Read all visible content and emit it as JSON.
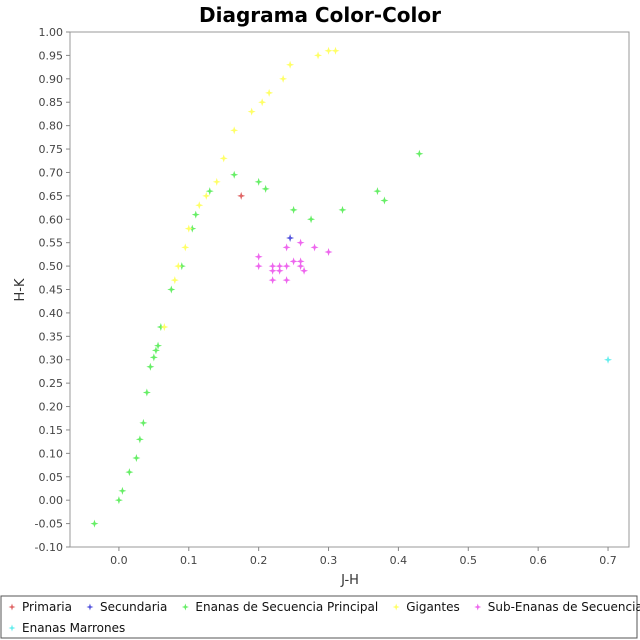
{
  "chart_data": {
    "type": "scatter",
    "title": "Diagrama Color-Color",
    "xlabel": "J-H",
    "ylabel": "H-K",
    "xlim": [
      -0.07,
      0.73
    ],
    "ylim": [
      -0.1,
      1.0
    ],
    "xticks": [
      0.0,
      0.1,
      0.2,
      0.3,
      0.4,
      0.5,
      0.6,
      0.7
    ],
    "xtick_labels": [
      "0.0",
      "0.1",
      "0.2",
      "0.3",
      "0.4",
      "0.5",
      "0.6",
      "0.7"
    ],
    "yticks": [
      -0.1,
      -0.05,
      0.0,
      0.05,
      0.1,
      0.15,
      0.2,
      0.25,
      0.3,
      0.35,
      0.4,
      0.45,
      0.5,
      0.55,
      0.6,
      0.65,
      0.7,
      0.75,
      0.8,
      0.85,
      0.9,
      0.95,
      1.0
    ],
    "ytick_labels": [
      "-0.10",
      "-0.05",
      "0.00",
      "0.05",
      "0.10",
      "0.15",
      "0.20",
      "0.25",
      "0.30",
      "0.35",
      "0.40",
      "0.45",
      "0.50",
      "0.55",
      "0.60",
      "0.65",
      "0.70",
      "0.75",
      "0.80",
      "0.85",
      "0.90",
      "0.95",
      "1.00"
    ],
    "grid": false,
    "legend_position": "bottom",
    "series": [
      {
        "name": "Primaria",
        "color": "#e06666",
        "points": [
          [
            0.175,
            0.65
          ]
        ]
      },
      {
        "name": "Secundaria",
        "color": "#5555dd",
        "points": [
          [
            0.245,
            0.56
          ]
        ]
      },
      {
        "name": "Enanas de Secuencia Principal",
        "color": "#66ee66",
        "points": [
          [
            -0.035,
            -0.05
          ],
          [
            0.0,
            0.0
          ],
          [
            0.005,
            0.02
          ],
          [
            0.015,
            0.06
          ],
          [
            0.025,
            0.09
          ],
          [
            0.03,
            0.13
          ],
          [
            0.035,
            0.165
          ],
          [
            0.04,
            0.23
          ],
          [
            0.045,
            0.285
          ],
          [
            0.05,
            0.305
          ],
          [
            0.053,
            0.32
          ],
          [
            0.056,
            0.33
          ],
          [
            0.06,
            0.37
          ],
          [
            0.075,
            0.45
          ],
          [
            0.09,
            0.5
          ],
          [
            0.105,
            0.58
          ],
          [
            0.11,
            0.61
          ],
          [
            0.13,
            0.66
          ],
          [
            0.165,
            0.695
          ],
          [
            0.2,
            0.68
          ],
          [
            0.21,
            0.665
          ],
          [
            0.25,
            0.62
          ],
          [
            0.275,
            0.6
          ],
          [
            0.32,
            0.62
          ],
          [
            0.37,
            0.66
          ],
          [
            0.38,
            0.64
          ],
          [
            0.43,
            0.74
          ]
        ]
      },
      {
        "name": "Gigantes",
        "color": "#ffff66",
        "points": [
          [
            0.065,
            0.37
          ],
          [
            0.08,
            0.47
          ],
          [
            0.085,
            0.5
          ],
          [
            0.095,
            0.54
          ],
          [
            0.1,
            0.58
          ],
          [
            0.115,
            0.63
          ],
          [
            0.125,
            0.65
          ],
          [
            0.14,
            0.68
          ],
          [
            0.15,
            0.73
          ],
          [
            0.165,
            0.79
          ],
          [
            0.19,
            0.83
          ],
          [
            0.205,
            0.85
          ],
          [
            0.215,
            0.87
          ],
          [
            0.235,
            0.9
          ],
          [
            0.245,
            0.93
          ],
          [
            0.285,
            0.95
          ],
          [
            0.3,
            0.96
          ],
          [
            0.31,
            0.96
          ]
        ]
      },
      {
        "name": "Sub-Enanas de Secuencia Principal",
        "color": "#ee66ee",
        "points": [
          [
            0.2,
            0.52
          ],
          [
            0.2,
            0.5
          ],
          [
            0.22,
            0.5
          ],
          [
            0.22,
            0.49
          ],
          [
            0.22,
            0.47
          ],
          [
            0.23,
            0.5
          ],
          [
            0.23,
            0.49
          ],
          [
            0.24,
            0.5
          ],
          [
            0.24,
            0.47
          ],
          [
            0.24,
            0.54
          ],
          [
            0.25,
            0.51
          ],
          [
            0.26,
            0.51
          ],
          [
            0.26,
            0.5
          ],
          [
            0.26,
            0.55
          ],
          [
            0.265,
            0.49
          ],
          [
            0.28,
            0.54
          ],
          [
            0.3,
            0.53
          ]
        ]
      },
      {
        "name": "Enanas Marrones",
        "color": "#66eeee",
        "points": [
          [
            0.7,
            0.3
          ]
        ]
      }
    ]
  }
}
